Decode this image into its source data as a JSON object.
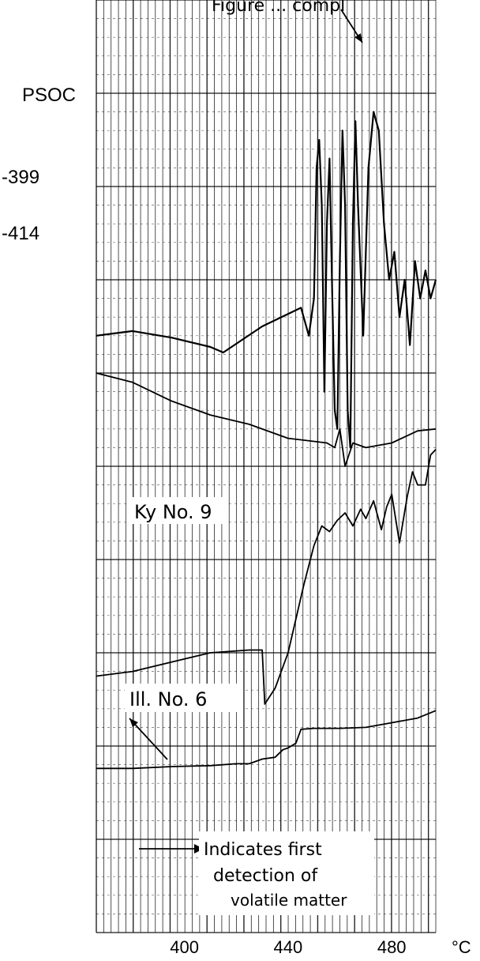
{
  "chart_data": {
    "type": "line",
    "title": "",
    "header_fragment": "Figure ... compl",
    "xlabel": "°C",
    "x_ticks": [
      400,
      440,
      480
    ],
    "xlim": [
      366,
      497
    ],
    "grid": true,
    "legend": "none",
    "series_labels": [
      "PSOC",
      "-399",
      "-414",
      "Ky No. 9",
      "Ill. No. 6"
    ],
    "annotation": [
      "Indicates first",
      "detection of",
      "volatile matter"
    ],
    "series": [
      {
        "name": "PSOC -399",
        "x": [
          366,
          380,
          395,
          410,
          415,
          430,
          445,
          448,
          450,
          451,
          452,
          453,
          454,
          455,
          456,
          457,
          458,
          459,
          460,
          461,
          462,
          463,
          464,
          465,
          466,
          467,
          469,
          471,
          473,
          475,
          477,
          479,
          481,
          483,
          485,
          487,
          489,
          491,
          493,
          495,
          497
        ],
        "y": [
          640,
          645,
          638,
          628,
          622,
          650,
          670,
          640,
          680,
          820,
          850,
          780,
          580,
          760,
          830,
          690,
          560,
          540,
          720,
          860,
          780,
          560,
          520,
          760,
          870,
          780,
          640,
          820,
          880,
          860,
          760,
          700,
          730,
          660,
          700,
          630,
          720,
          680,
          710,
          680,
          700
        ]
      },
      {
        "name": "PSOC -414",
        "x": [
          366,
          380,
          395,
          410,
          425,
          440,
          455,
          458,
          460,
          462,
          465,
          470,
          480,
          490,
          497
        ],
        "y": [
          600,
          590,
          570,
          555,
          545,
          530,
          525,
          520,
          540,
          500,
          525,
          520,
          525,
          538,
          540
        ]
      },
      {
        "name": "Ky No. 9",
        "x": [
          366,
          380,
          395,
          410,
          425,
          430,
          431,
          435,
          440,
          446,
          450,
          453,
          456,
          459,
          462,
          465,
          468,
          470,
          473,
          476,
          478,
          480,
          483,
          486,
          488,
          490,
          493,
          495,
          497
        ],
        "y": [
          275,
          280,
          290,
          300,
          303,
          303,
          245,
          262,
          300,
          372,
          415,
          436,
          430,
          442,
          450,
          436,
          454,
          444,
          463,
          432,
          456,
          470,
          418,
          468,
          494,
          480,
          480,
          512,
          518
        ]
      },
      {
        "name": "Ill. No. 6",
        "x": [
          366,
          380,
          395,
          410,
          420,
          425,
          430,
          435,
          438,
          440,
          443,
          445,
          450,
          460,
          470,
          480,
          490,
          497
        ],
        "y": [
          176,
          176,
          178,
          179,
          181,
          181,
          186,
          188,
          196,
          198,
          203,
          218,
          219,
          219,
          220,
          225,
          230,
          238
        ]
      }
    ],
    "arrow_marker_labels": [
      "first detection arrow (top)",
      "first detection arrow (Ill. No. 6)",
      "legend arrow"
    ]
  },
  "colors": {
    "ink": "#000000",
    "grid": "#000000",
    "paper": "#ffffff"
  }
}
